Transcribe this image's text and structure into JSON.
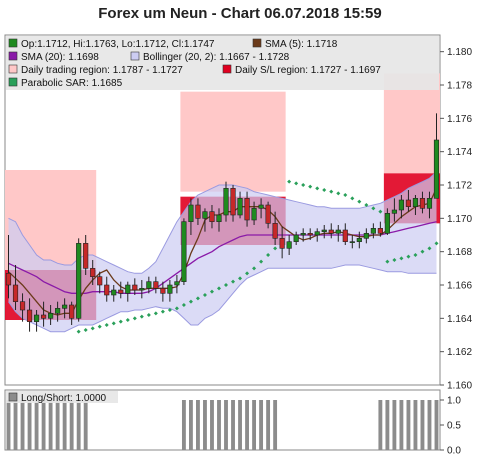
{
  "title": "Forex um Neun - Chart 06.07.2018 15:59",
  "legend": {
    "ohlc": "Op:1.1712, Hi:1.1763, Lo:1.1712, Cl:1.1747",
    "sma5": "SMA (5): 1.1718",
    "sma20": "SMA (20): 1.1698",
    "bollinger": "Bollinger (20, 2): 1.1667 - 1.1728",
    "daily_trading_region": "Daily trading region: 1.1787 - 1.1727",
    "daily_sl_region": "Daily S/L region: 1.1727 - 1.1697",
    "parabolic_sar": "Parabolic SAR: 1.1685"
  },
  "subpanel": {
    "label": "Long/Short: 1.0000"
  },
  "colors": {
    "bull": "#1f8a1f",
    "bear": "#c62828",
    "sma5": "#6b3a1a",
    "sma20": "#8a1aa8",
    "bollinger_fill": "#ccccf2",
    "bollinger_line": "#9a9ae0",
    "trading_region": "#ffc8c8",
    "sl_region": "#e00020",
    "sar": "#2aa05a",
    "longshort_bar": "#8c8c8c"
  },
  "chart_data": [
    {
      "type": "candlestick",
      "title": "Forex um Neun - Chart 06.07.2018 15:59",
      "ylim": [
        1.16,
        1.181
      ],
      "yticks": [
        "1.160",
        "1.162",
        "1.164",
        "1.166",
        "1.168",
        "1.170",
        "1.172",
        "1.174",
        "1.176",
        "1.178",
        "1.180"
      ],
      "candles": [
        [
          1.1667,
          1.169,
          1.1652,
          1.166
        ],
        [
          1.166,
          1.1672,
          1.1645,
          1.165
        ],
        [
          1.165,
          1.1655,
          1.1638,
          1.1645
        ],
        [
          1.1645,
          1.1652,
          1.1632,
          1.1638
        ],
        [
          1.1638,
          1.1645,
          1.1632,
          1.1642
        ],
        [
          1.1642,
          1.165,
          1.1635,
          1.164
        ],
        [
          1.164,
          1.1648,
          1.1636,
          1.1643
        ],
        [
          1.1643,
          1.165,
          1.1638,
          1.1646
        ],
        [
          1.1646,
          1.1652,
          1.164,
          1.1648
        ],
        [
          1.1648,
          1.165,
          1.1636,
          1.164
        ],
        [
          1.164,
          1.1688,
          1.1638,
          1.1685
        ],
        [
          1.1685,
          1.169,
          1.1666,
          1.167
        ],
        [
          1.167,
          1.1675,
          1.166,
          1.1665
        ],
        [
          1.1665,
          1.1668,
          1.1655,
          1.166
        ],
        [
          1.166,
          1.1665,
          1.165,
          1.1654
        ],
        [
          1.1654,
          1.166,
          1.165,
          1.1657
        ],
        [
          1.1657,
          1.1662,
          1.1652,
          1.1655
        ],
        [
          1.1655,
          1.1662,
          1.165,
          1.166
        ],
        [
          1.166,
          1.1664,
          1.1654,
          1.1657
        ],
        [
          1.1657,
          1.1663,
          1.1652,
          1.1658
        ],
        [
          1.1658,
          1.1665,
          1.1655,
          1.1662
        ],
        [
          1.1662,
          1.1665,
          1.1655,
          1.1658
        ],
        [
          1.1658,
          1.1662,
          1.165,
          1.1655
        ],
        [
          1.1655,
          1.1663,
          1.165,
          1.166
        ],
        [
          1.166,
          1.1666,
          1.1655,
          1.1662
        ],
        [
          1.1662,
          1.17,
          1.166,
          1.1698
        ],
        [
          1.1698,
          1.1712,
          1.169,
          1.1708
        ],
        [
          1.1708,
          1.1712,
          1.1696,
          1.17
        ],
        [
          1.17,
          1.1706,
          1.1692,
          1.1704
        ],
        [
          1.1704,
          1.1708,
          1.1694,
          1.1698
        ],
        [
          1.1698,
          1.1706,
          1.1692,
          1.1702
        ],
        [
          1.1702,
          1.1722,
          1.1698,
          1.1718
        ],
        [
          1.1718,
          1.172,
          1.1698,
          1.1702
        ],
        [
          1.1702,
          1.1716,
          1.17,
          1.1712
        ],
        [
          1.1712,
          1.1716,
          1.1695,
          1.1699
        ],
        [
          1.1699,
          1.171,
          1.1696,
          1.1706
        ],
        [
          1.1706,
          1.1712,
          1.17,
          1.1708
        ],
        [
          1.1708,
          1.171,
          1.1694,
          1.1697
        ],
        [
          1.1697,
          1.1704,
          1.1684,
          1.1688
        ],
        [
          1.1688,
          1.1695,
          1.1676,
          1.1682
        ],
        [
          1.1682,
          1.169,
          1.1678,
          1.1686
        ],
        [
          1.1686,
          1.1692,
          1.1684,
          1.169
        ],
        [
          1.169,
          1.1694,
          1.1686,
          1.1691
        ],
        [
          1.1691,
          1.1694,
          1.1687,
          1.169
        ],
        [
          1.169,
          1.1694,
          1.1686,
          1.1692
        ],
        [
          1.1692,
          1.1696,
          1.1688,
          1.1693
        ],
        [
          1.1693,
          1.1697,
          1.1688,
          1.1691
        ],
        [
          1.1691,
          1.1696,
          1.1686,
          1.1693
        ],
        [
          1.1693,
          1.1697,
          1.1684,
          1.1686
        ],
        [
          1.1686,
          1.169,
          1.1682,
          1.1686
        ],
        [
          1.1686,
          1.1692,
          1.1682,
          1.1688
        ],
        [
          1.1688,
          1.1694,
          1.1685,
          1.1691
        ],
        [
          1.1691,
          1.1697,
          1.1688,
          1.1694
        ],
        [
          1.1694,
          1.1698,
          1.1689,
          1.1691
        ],
        [
          1.1691,
          1.1706,
          1.169,
          1.1703
        ],
        [
          1.1703,
          1.1712,
          1.1698,
          1.1705
        ],
        [
          1.1705,
          1.1714,
          1.17,
          1.1711
        ],
        [
          1.1711,
          1.1717,
          1.1704,
          1.1707
        ],
        [
          1.1707,
          1.1714,
          1.1702,
          1.1712
        ],
        [
          1.1712,
          1.1716,
          1.1703,
          1.1706
        ],
        [
          1.1706,
          1.1716,
          1.17,
          1.1712
        ],
        [
          1.1712,
          1.1763,
          1.1712,
          1.1747
        ]
      ],
      "sma5": [
        1.1668,
        1.1664,
        1.166,
        1.1655,
        1.165,
        1.1645,
        1.1643,
        1.1642,
        1.1643,
        1.1643,
        1.1651,
        1.1658,
        1.1663,
        1.1667,
        1.1669,
        1.1663,
        1.1659,
        1.1657,
        1.1657,
        1.1657,
        1.1658,
        1.1658,
        1.1658,
        1.1658,
        1.1659,
        1.1667,
        1.1679,
        1.1688,
        1.1699,
        1.1702,
        1.1702,
        1.1704,
        1.1704,
        1.1707,
        1.1707,
        1.1707,
        1.1707,
        1.1705,
        1.1701,
        1.1695,
        1.1692,
        1.1689,
        1.1687,
        1.1688,
        1.169,
        1.1691,
        1.1691,
        1.1692,
        1.1691,
        1.169,
        1.1689,
        1.1689,
        1.169,
        1.169,
        1.1693,
        1.1697,
        1.1701,
        1.1704,
        1.1707,
        1.1708,
        1.1709,
        1.1718
      ],
      "sma20": [
        1.1673,
        1.1671,
        1.1669,
        1.1667,
        1.1665,
        1.1662,
        1.166,
        1.1658,
        1.1656,
        1.1655,
        1.1655,
        1.1655,
        1.1656,
        1.1656,
        1.1656,
        1.1656,
        1.1655,
        1.1655,
        1.1655,
        1.1655,
        1.1656,
        1.1658,
        1.1661,
        1.1664,
        1.1667,
        1.167,
        1.1673,
        1.1676,
        1.1678,
        1.168,
        1.1683,
        1.1685,
        1.1687,
        1.1689,
        1.169,
        1.169,
        1.169,
        1.169,
        1.169,
        1.169,
        1.169,
        1.169,
        1.169,
        1.169,
        1.169,
        1.169,
        1.169,
        1.169,
        1.169,
        1.169,
        1.169,
        1.169,
        1.169,
        1.169,
        1.1691,
        1.1692,
        1.1693,
        1.1694,
        1.1695,
        1.1696,
        1.1697,
        1.1698
      ],
      "bollinger_upper": [
        1.17,
        1.1698,
        1.169,
        1.1684,
        1.1678,
        1.1675,
        1.1675,
        1.1673,
        1.1672,
        1.1672,
        1.1676,
        1.1678,
        1.1678,
        1.1676,
        1.1674,
        1.1672,
        1.167,
        1.1668,
        1.1667,
        1.1667,
        1.167,
        1.1674,
        1.1682,
        1.169,
        1.1698,
        1.1704,
        1.171,
        1.1714,
        1.1716,
        1.1718,
        1.172,
        1.172,
        1.172,
        1.1719,
        1.1718,
        1.1716,
        1.1715,
        1.1714,
        1.1713,
        1.1712,
        1.1711,
        1.171,
        1.1709,
        1.1708,
        1.1707,
        1.1707,
        1.1706,
        1.1706,
        1.1706,
        1.1706,
        1.1706,
        1.1707,
        1.1708,
        1.1709,
        1.1711,
        1.1713,
        1.1715,
        1.1718,
        1.172,
        1.1722,
        1.1724,
        1.1728
      ],
      "bollinger_lower": [
        1.165,
        1.1644,
        1.164,
        1.1638,
        1.1636,
        1.1634,
        1.1632,
        1.1632,
        1.1632,
        1.1634,
        1.1636,
        1.1636,
        1.1636,
        1.1638,
        1.164,
        1.1642,
        1.1644,
        1.1644,
        1.1645,
        1.1645,
        1.1646,
        1.1647,
        1.1646,
        1.1646,
        1.1644,
        1.164,
        1.1636,
        1.1636,
        1.164,
        1.1642,
        1.1645,
        1.165,
        1.1655,
        1.166,
        1.1664,
        1.1666,
        1.1668,
        1.167,
        1.167,
        1.167,
        1.167,
        1.167,
        1.167,
        1.167,
        1.167,
        1.167,
        1.167,
        1.1671,
        1.1672,
        1.1672,
        1.1672,
        1.1671,
        1.167,
        1.1669,
        1.1668,
        1.1668,
        1.1668,
        1.1667,
        1.1667,
        1.1667,
        1.1667,
        1.1667
      ],
      "sar": [
        null,
        null,
        null,
        null,
        null,
        null,
        null,
        null,
        null,
        null,
        1.1632,
        1.1633,
        1.1634,
        1.1635,
        1.1636,
        1.1637,
        1.1638,
        1.1639,
        1.164,
        1.1641,
        1.1642,
        1.1643,
        1.1644,
        1.1645,
        1.1646,
        1.1648,
        1.165,
        1.1652,
        1.1654,
        1.1656,
        1.1658,
        1.166,
        1.1662,
        1.1664,
        1.1667,
        1.167,
        1.1674,
        1.1678,
        1.1682,
        1.1686,
        1.1722,
        1.1721,
        1.172,
        1.1719,
        1.1718,
        1.1717,
        1.1716,
        1.1715,
        1.1714,
        1.1712,
        1.171,
        1.1708,
        1.1706,
        1.1704,
        1.1674,
        1.1675,
        1.1676,
        1.1677,
        1.1678,
        1.168,
        1.1682,
        1.1685
      ],
      "trading_regions": [
        {
          "start": 0,
          "end": 12,
          "high": 1.1729,
          "low": 1.1669
        },
        {
          "start": 25,
          "end": 39,
          "high": 1.1776,
          "low": 1.1716
        },
        {
          "start": 54,
          "end": 61,
          "high": 1.1787,
          "low": 1.1727
        }
      ],
      "sl_regions": [
        {
          "start": 0,
          "end": 12,
          "high": 1.1669,
          "low": 1.1639
        },
        {
          "start": 25,
          "end": 39,
          "high": 1.1713,
          "low": 1.1684
        },
        {
          "start": 54,
          "end": 61,
          "high": 1.1727,
          "low": 1.1697
        }
      ]
    },
    {
      "type": "bar",
      "name": "Long/Short",
      "ylim": [
        0,
        1
      ],
      "yticks": [
        "0.0",
        "0.5",
        "1.0"
      ],
      "values": [
        1,
        1,
        1,
        1,
        1,
        1,
        1,
        1,
        1,
        1,
        1,
        1,
        0,
        0,
        0,
        0,
        0,
        0,
        0,
        0,
        0,
        0,
        0,
        0,
        0,
        1,
        1,
        1,
        1,
        1,
        1,
        1,
        1,
        1,
        1,
        1,
        1,
        1,
        1,
        0,
        0,
        0,
        0,
        0,
        0,
        0,
        0,
        0,
        0,
        0,
        0,
        0,
        0,
        1,
        1,
        1,
        1,
        1,
        1,
        1,
        1,
        1
      ]
    }
  ]
}
